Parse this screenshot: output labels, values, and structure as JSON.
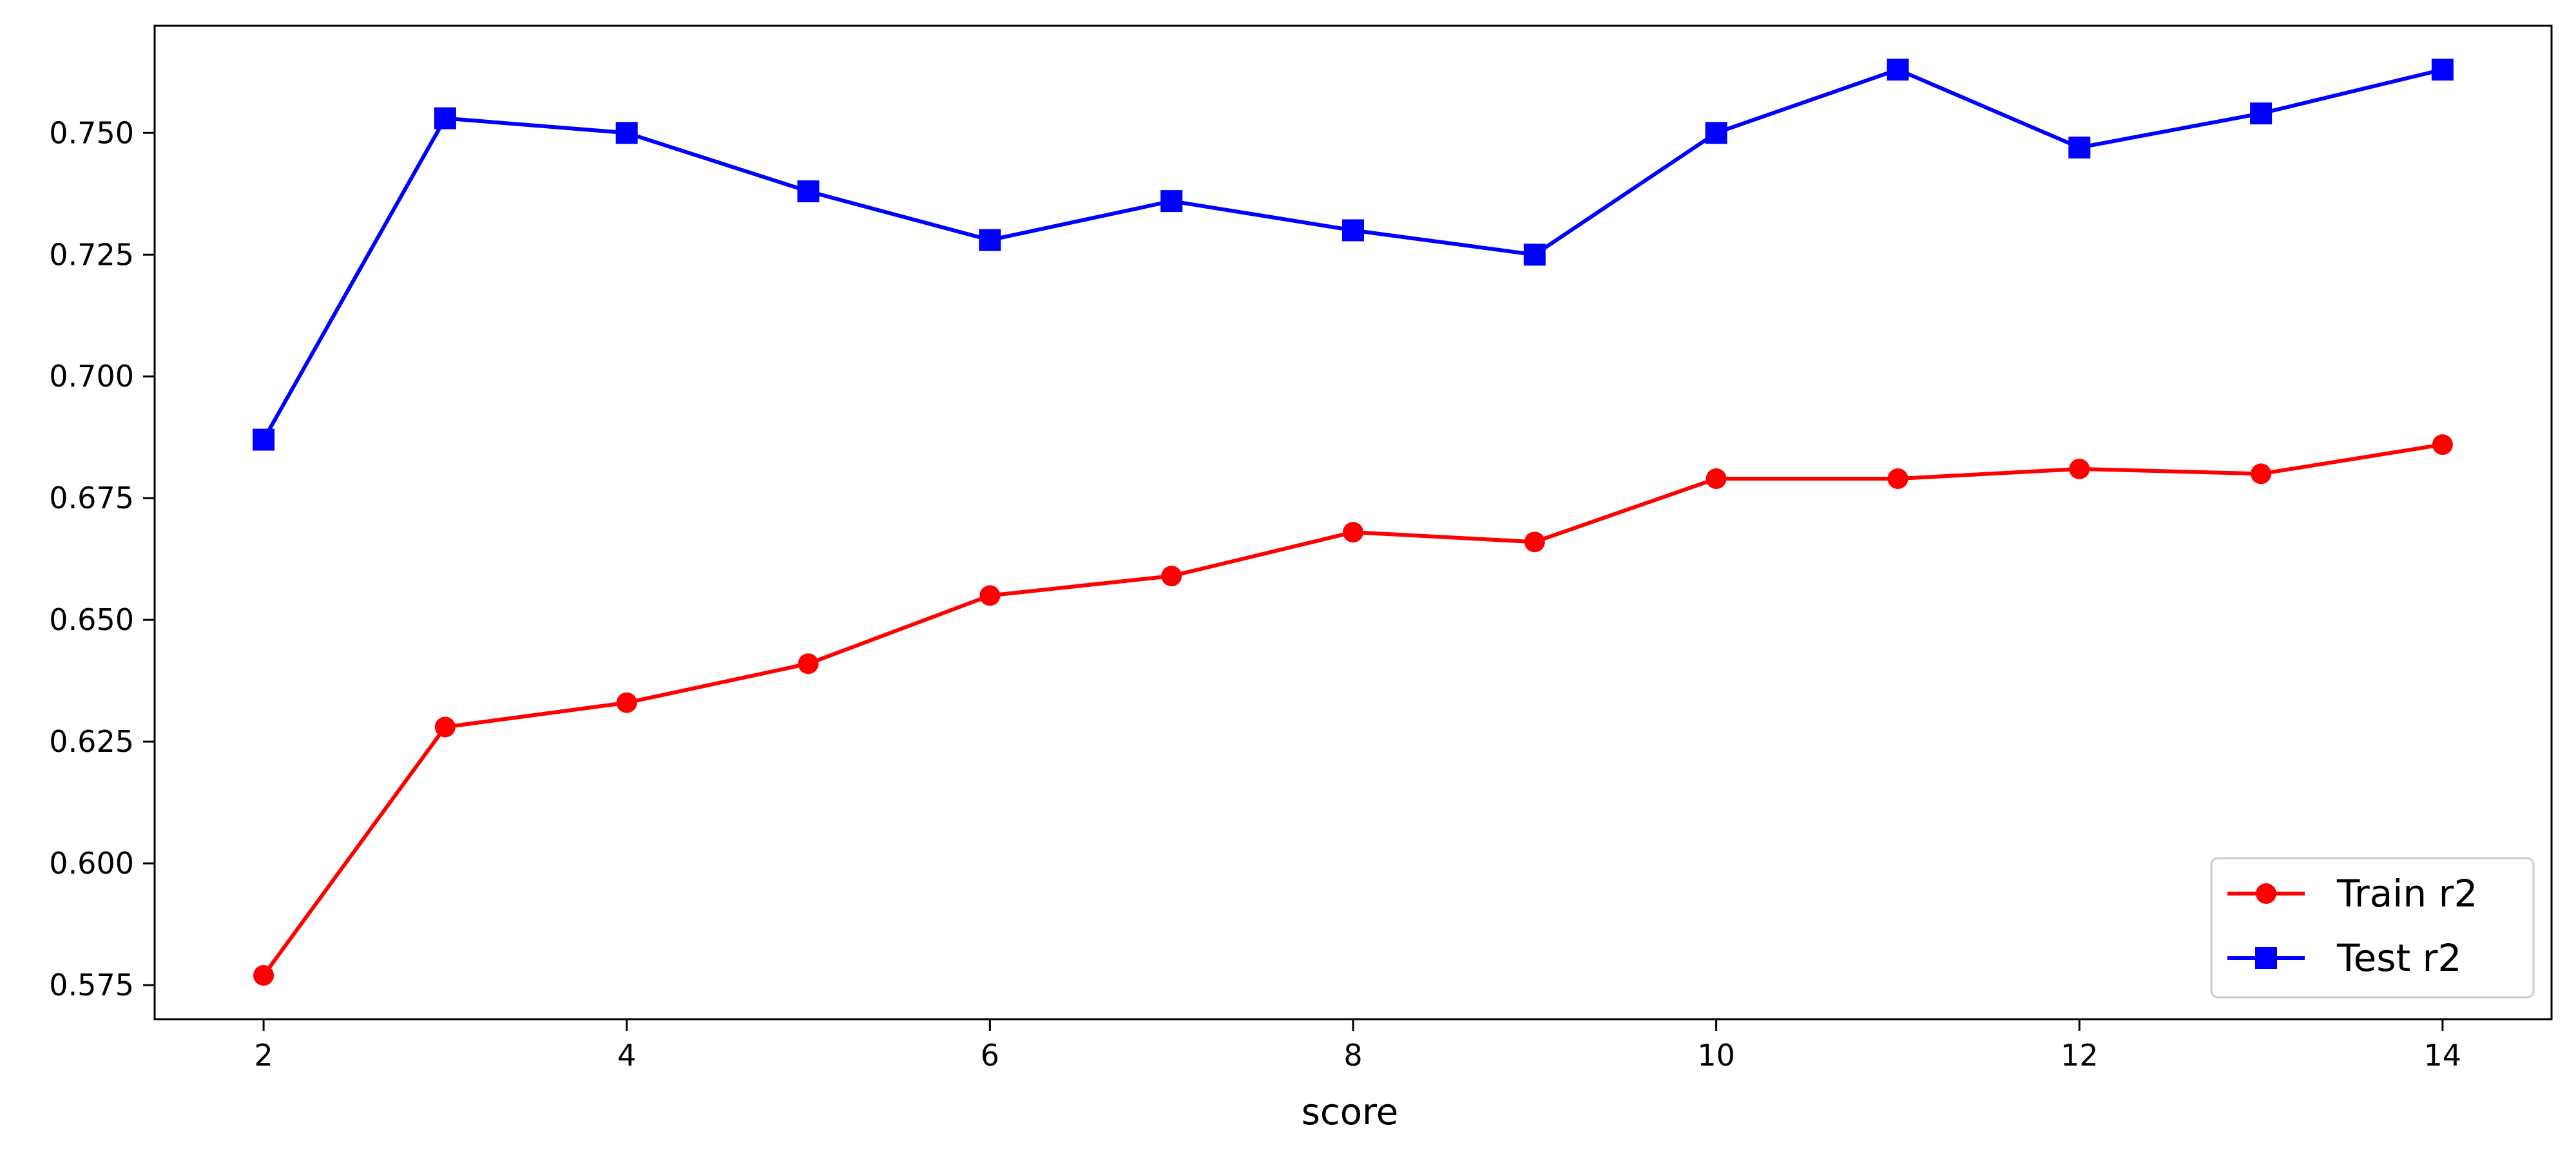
{
  "chart_data": {
    "type": "line",
    "title": "",
    "xlabel": "score",
    "ylabel": "",
    "x": [
      2,
      3,
      4,
      5,
      6,
      7,
      8,
      9,
      10,
      11,
      12,
      13,
      14
    ],
    "series": [
      {
        "name": "Train r2",
        "color": "#ff0000",
        "marker": "circle",
        "values": [
          0.577,
          0.628,
          0.633,
          0.641,
          0.655,
          0.659,
          0.668,
          0.666,
          0.679,
          0.679,
          0.681,
          0.68,
          0.686
        ]
      },
      {
        "name": "Test r2",
        "color": "#0000ff",
        "marker": "square",
        "values": [
          0.687,
          0.753,
          0.75,
          0.738,
          0.728,
          0.736,
          0.73,
          0.725,
          0.75,
          0.763,
          0.747,
          0.754,
          0.763
        ]
      }
    ],
    "xlim": [
      1.4,
      14.6
    ],
    "ylim": [
      0.568,
      0.772
    ],
    "xticks": [
      2,
      4,
      6,
      8,
      10,
      12,
      14
    ],
    "yticks": [
      0.575,
      0.6,
      0.625,
      0.65,
      0.675,
      0.7,
      0.725,
      0.75
    ],
    "ytick_labels": [
      "0.575",
      "0.600",
      "0.625",
      "0.650",
      "0.675",
      "0.700",
      "0.725",
      "0.750"
    ],
    "grid": false,
    "legend_position": "bottom-right"
  }
}
